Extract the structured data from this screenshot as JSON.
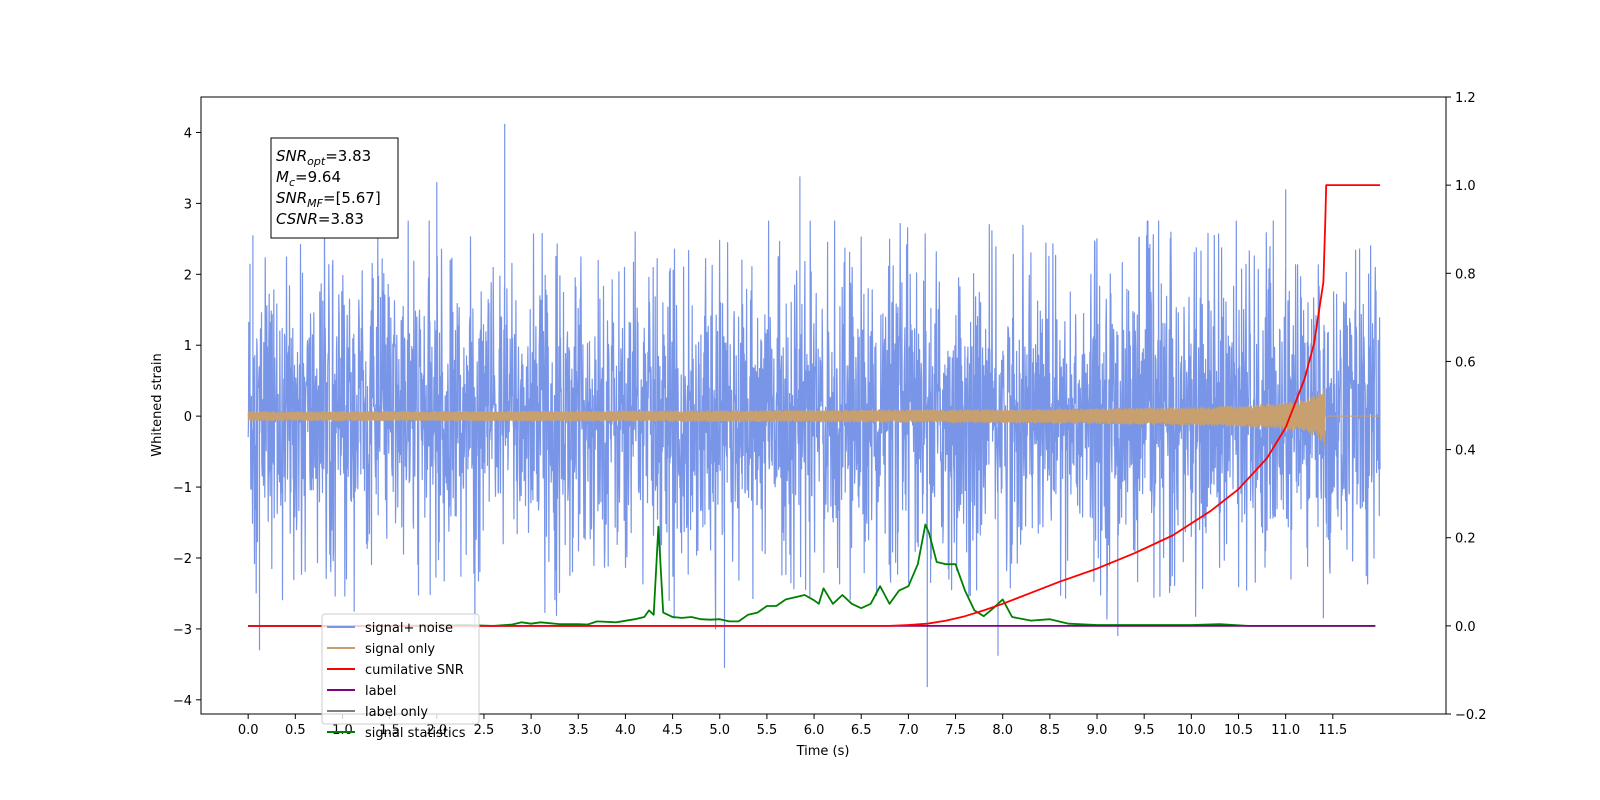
{
  "chart_data": {
    "type": "line",
    "xlabel": "Time (s)",
    "ylabel": "Whitened strain",
    "xlim": [
      -0.5,
      12.7
    ],
    "ylim": [
      -4.2,
      4.5
    ],
    "y2lim": [
      -0.2,
      1.2
    ],
    "x_ticks": [
      0.0,
      0.5,
      1.0,
      1.5,
      2.0,
      2.5,
      3.0,
      3.5,
      4.0,
      4.5,
      5.0,
      5.5,
      6.0,
      6.5,
      7.0,
      7.5,
      8.0,
      8.5,
      9.0,
      9.5,
      10.0,
      10.5,
      11.0,
      11.5
    ],
    "x_tick_labels": [
      "0.0",
      "0.5",
      "1.0",
      "1.5",
      "2.0",
      "2.5",
      "3.0",
      "3.5",
      "4.0",
      "4.5",
      "5.0",
      "5.5",
      "6.0",
      "6.5",
      "7.0",
      "7.5",
      "8.0",
      "8.5",
      "9.0",
      "9.5",
      "10.0",
      "10.5",
      "11.0",
      "11.5"
    ],
    "y_ticks": [
      4,
      3,
      2,
      1,
      0,
      -1,
      -2,
      -3,
      -4
    ],
    "y_tick_labels": [
      "4",
      "3",
      "2",
      "1",
      "0",
      "−1",
      "−2",
      "−3",
      "−4"
    ],
    "y2_ticks": [
      1.2,
      1.0,
      0.8,
      0.6,
      0.4,
      0.2,
      0.0,
      -0.2
    ],
    "y2_tick_labels": [
      "1.2",
      "1.0",
      "0.8",
      "0.6",
      "0.4",
      "0.2",
      "0.0",
      "−0.2"
    ],
    "legend_position": "lower-left",
    "series": [
      {
        "name": "signal+ noise",
        "color": "#7895e8",
        "axis": "left",
        "x_range": [
          0.0,
          12.0
        ],
        "band_max_envelope": 2.3,
        "band_min_envelope": -2.3,
        "peaks": [
          [
            0.02,
            2.15
          ],
          [
            0.05,
            2.55
          ],
          [
            0.12,
            -3.3
          ],
          [
            2.72,
            4.12
          ],
          [
            2.0,
            3.3
          ],
          [
            5.05,
            -3.55
          ],
          [
            5.85,
            3.38
          ],
          [
            7.2,
            -3.82
          ],
          [
            7.95,
            -3.38
          ],
          [
            9.22,
            -3.1
          ],
          [
            11.0,
            3.2
          ],
          [
            11.4,
            -2.85
          ]
        ]
      },
      {
        "name": "signal only",
        "color": "#c8a070",
        "axis": "left",
        "x_range": [
          0.0,
          12.0
        ],
        "chirp_end": 11.42,
        "peak_amplitude": 0.48
      },
      {
        "name": "cumilative SNR",
        "color": "#ff0000",
        "axis": "right",
        "x": [
          0,
          6.8,
          7.0,
          7.2,
          7.4,
          7.6,
          7.8,
          8.0,
          8.3,
          8.6,
          9.0,
          9.4,
          9.8,
          10.2,
          10.5,
          10.8,
          11.0,
          11.2,
          11.3,
          11.4,
          11.42,
          11.43,
          12.0
        ],
        "values": [
          0,
          0,
          0.002,
          0.005,
          0.012,
          0.022,
          0.035,
          0.05,
          0.075,
          0.1,
          0.13,
          0.165,
          0.205,
          0.26,
          0.31,
          0.38,
          0.45,
          0.56,
          0.64,
          0.78,
          0.92,
          1.0,
          1.0
        ]
      },
      {
        "name": "label",
        "color": "#800080",
        "axis": "right",
        "x": [
          0,
          11.95
        ],
        "values": [
          0,
          0
        ]
      },
      {
        "name": "label only",
        "color": "#7f7f7f",
        "axis": "right",
        "x": [],
        "values": []
      },
      {
        "name": "signal statistics",
        "color": "#008000",
        "axis": "right",
        "x": [
          0,
          0.5,
          1.0,
          1.5,
          2.0,
          2.3,
          2.6,
          2.8,
          2.9,
          3.0,
          3.1,
          3.3,
          3.5,
          3.6,
          3.7,
          3.9,
          4.1,
          4.2,
          4.25,
          4.3,
          4.35,
          4.4,
          4.5,
          4.6,
          4.7,
          4.8,
          4.9,
          5.0,
          5.1,
          5.2,
          5.3,
          5.4,
          5.5,
          5.6,
          5.7,
          5.8,
          5.9,
          6.0,
          6.05,
          6.1,
          6.2,
          6.3,
          6.4,
          6.5,
          6.6,
          6.7,
          6.75,
          6.8,
          6.9,
          7.0,
          7.1,
          7.18,
          7.22,
          7.3,
          7.4,
          7.5,
          7.6,
          7.7,
          7.8,
          7.9,
          8.0,
          8.1,
          8.3,
          8.5,
          8.7,
          9.0,
          9.5,
          10.0,
          10.3,
          10.6,
          11.0,
          11.5,
          11.95
        ],
        "values": [
          0,
          0,
          0,
          0,
          0.001,
          0.002,
          0,
          0.003,
          0.008,
          0.005,
          0.008,
          0.004,
          0.004,
          0.003,
          0.01,
          0.008,
          0.015,
          0.02,
          0.035,
          0.025,
          0.225,
          0.03,
          0.02,
          0.018,
          0.02,
          0.015,
          0.014,
          0.015,
          0.01,
          0.01,
          0.025,
          0.03,
          0.045,
          0.045,
          0.06,
          0.065,
          0.07,
          0.058,
          0.05,
          0.085,
          0.05,
          0.07,
          0.05,
          0.04,
          0.05,
          0.09,
          0.07,
          0.05,
          0.08,
          0.09,
          0.14,
          0.23,
          0.21,
          0.145,
          0.14,
          0.14,
          0.08,
          0.035,
          0.022,
          0.04,
          0.06,
          0.02,
          0.012,
          0.015,
          0.005,
          0.002,
          0.002,
          0.002,
          0.004,
          0,
          0,
          0,
          0
        ]
      }
    ],
    "annotations": [
      {
        "base": "SNR",
        "sub": "opt",
        "rest": "=3.83"
      },
      {
        "base": "M",
        "sub": "c",
        "rest": "=9.64"
      },
      {
        "base": "SNR",
        "sub": "MF",
        "rest": "=[5.67]"
      },
      {
        "base": "CSNR",
        "sub": "",
        "rest": "=3.83"
      }
    ]
  }
}
